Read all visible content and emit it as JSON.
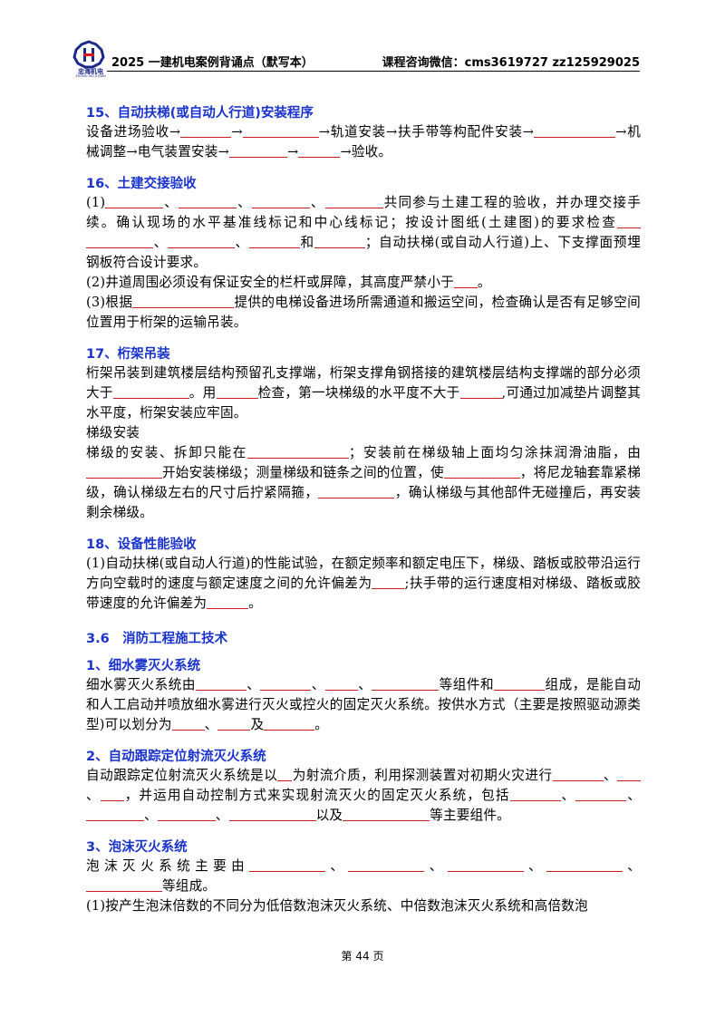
{
  "header": {
    "logo_text": "忠海机电",
    "logo_sub": "ZHONG HAI JI DIAN",
    "title": "2025 一建机电案例背诵点（默写本）",
    "contact": "课程咨询微信：cms3619727   zz125929025"
  },
  "sections": {
    "s15": {
      "title": "15、自动扶梯(或自动人行道)安装程序",
      "t1": "设备进场验收→",
      "t2": "→",
      "t3": "→轨道安装→扶手带等构配件安装→",
      "t4": "→机械调整→电气装置安装→",
      "t5": "→",
      "t6": "→验收。"
    },
    "s16": {
      "title": "16、土建交接验收",
      "p1a": "(1)",
      "sep": "、",
      "p1b": "共同参与土建工程的验收，并办理交接手续。确认现场的水平基准线标记和中心线标记；按设计图纸(土建图)的要求检查",
      "p1c": "和",
      "p1d": "；自动扶梯(或自动人行道)上、下支撑面预埋钢板符合设计要求。",
      "p2a": "(2)井道周围必须设有保证安全的栏杆或屏障，其高度严禁小于",
      "p2b": "。",
      "p3a": "(3)根据",
      "p3b": "提供的电梯设备进场所需通道和搬运空间，检查确认是否有足够空间位置用于桁架的运输吊装。"
    },
    "s17": {
      "title": "17、桁架吊装",
      "p1a": "桁架吊装到建筑楼层结构预留孔支撑端，桁架支撑角钢搭接的建筑楼层结构支撑端的部分必须大于",
      "p1b": "。用",
      "p1c": "检查，第一块梯级的水平度不大于",
      "p1d": ",可通过加减垫片调整其水平度，桁架安装应牢固。",
      "sub": "梯级安装",
      "p2a": "梯级的安装、拆卸只能在",
      "p2b": "；安装前在梯级轴上面均匀涂抹润滑油脂，由",
      "p2c": "开始安装梯级；测量梯级和链条之间的位置，使",
      "p2d": "，将尼龙轴套靠紧梯级，确认梯级左右的尺寸后拧紧隔箍，",
      "p2e": "，确认梯级与其他部件无碰撞后，再安装剩余梯级。"
    },
    "s18": {
      "title": "18、设备性能验收",
      "p1a": "(1)自动扶梯(或自动人行道)的性能试验，在额定频率和额定电压下，梯级、踏板或胶带沿运行方向空载时的速度与额定速度之间的允许偏差为",
      "p1b": ";扶手带的运行速度相对梯级、踏板或胶带速度的允许偏差为",
      "p1c": "。"
    },
    "chapter": "3.6　消防工程施工技术",
    "f1": {
      "title": "1、细水雾灭火系统",
      "p1a": "细水雾灭火系统由",
      "p1b": "等组件和",
      "p1c": "组成，是能自动和人工启动并喷放细水雾进行灭火或控火的固定灭火系统。按供水方式（主要是按照驱动源类型)可以划分为",
      "p1d": "及",
      "p1e": "。"
    },
    "f2": {
      "title": "2、自动跟踪定位射流灭火系统",
      "p1a": "自动跟踪定位射流灭火系统是以",
      "p1b": "为射流介质，利用探测装置对初期火灾进行",
      "p1c": "，并运用自动控制方式来实现射流灭火的固定灭火系统，包括",
      "p1d": "以及",
      "p1e": "等主要组件。"
    },
    "f3": {
      "title": "3、泡沫灭火系统",
      "p1a": "泡沫灭火系统主要由",
      "p1b": "等组成。",
      "p2": "(1)按产生泡沫倍数的不同分为低倍数泡沫灭火系统、中倍数泡沫灭火系统和高倍数泡"
    }
  },
  "footer": {
    "page": "第 44 页"
  },
  "colors": {
    "heading": "#1a33cc",
    "blank_line": "#d61a1a"
  }
}
